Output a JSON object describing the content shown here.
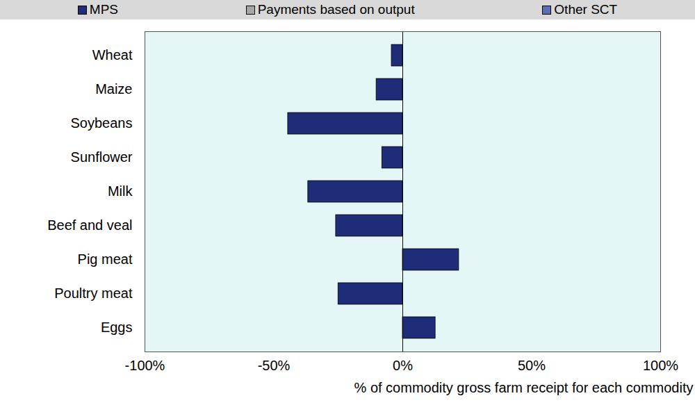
{
  "chart_data": {
    "type": "bar",
    "orientation": "horizontal",
    "stacked": true,
    "x_label": "% of commodity gross farm receipt for each commodity",
    "categories": [
      "Wheat",
      "Maize",
      "Soybeans",
      "Sunflower",
      "Milk",
      "Beef and veal",
      "Pig meat",
      "Poultry meat",
      "Eggs"
    ],
    "series": [
      {
        "name": "MPS",
        "color": "#1f2d78",
        "values": [
          -4.3,
          -10.2,
          -44.5,
          -8,
          -36.7,
          -25.9,
          21.8,
          -25,
          12.7
        ]
      },
      {
        "name": "Payments based on output",
        "color": "#a6a6a6",
        "values": [
          0,
          0,
          0,
          0,
          0,
          0,
          0,
          0,
          0
        ]
      },
      {
        "name": "Other SCT",
        "color": "#5a6fb8",
        "values": [
          0,
          0,
          0,
          0,
          0,
          0,
          0,
          0,
          0
        ]
      }
    ],
    "xlim": [
      -100,
      100
    ],
    "xticks": [
      {
        "value": -100,
        "label": "-100%"
      },
      {
        "value": -50,
        "label": "-50%"
      },
      {
        "value": 0,
        "label": "0%"
      },
      {
        "value": 50,
        "label": "50%"
      },
      {
        "value": 100,
        "label": "100%"
      }
    ],
    "legend": "top",
    "grid": false
  }
}
